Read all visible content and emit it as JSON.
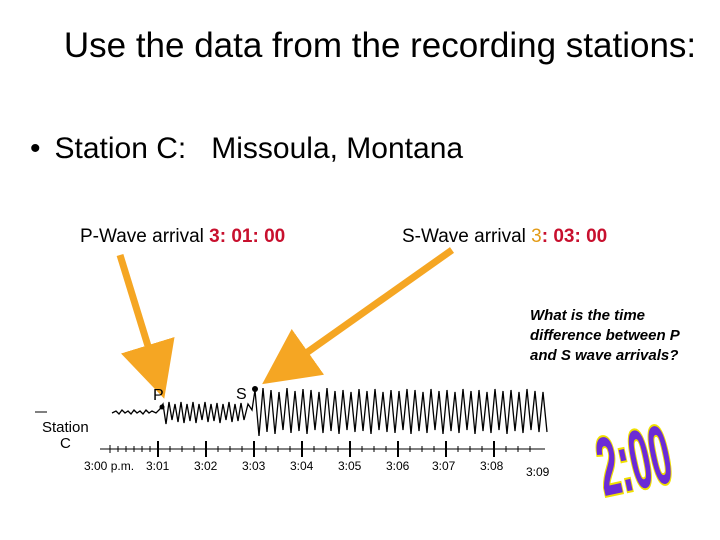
{
  "title": "Use the data from the recording stations:",
  "bullet": {
    "symbol": "•",
    "label": "Station C:",
    "location": "Missoula, Montana"
  },
  "p_wave": {
    "label": "P-Wave arrival",
    "time": "3: 01: 00"
  },
  "s_wave": {
    "label": "S-Wave arrival",
    "time_a": "3",
    "time_b": ": 03: 00"
  },
  "question": "What is the time difference between P and S wave arrivals?",
  "answer": "2:00",
  "seismogram": {
    "station_line1": "Station",
    "station_line2": "C",
    "p_marker": "P",
    "s_marker": "S",
    "time_ticks": [
      "3:00 p.m.",
      "3:01",
      "3:02",
      "3:03",
      "3:04",
      "3:05",
      "3:06",
      "3:07",
      "3:08",
      "3:09"
    ]
  },
  "colors": {
    "arrow": "#f5a623",
    "time_red": "#c8102e",
    "answer_fill": "#6b2bd6",
    "answer_outline": "#f0e000"
  }
}
